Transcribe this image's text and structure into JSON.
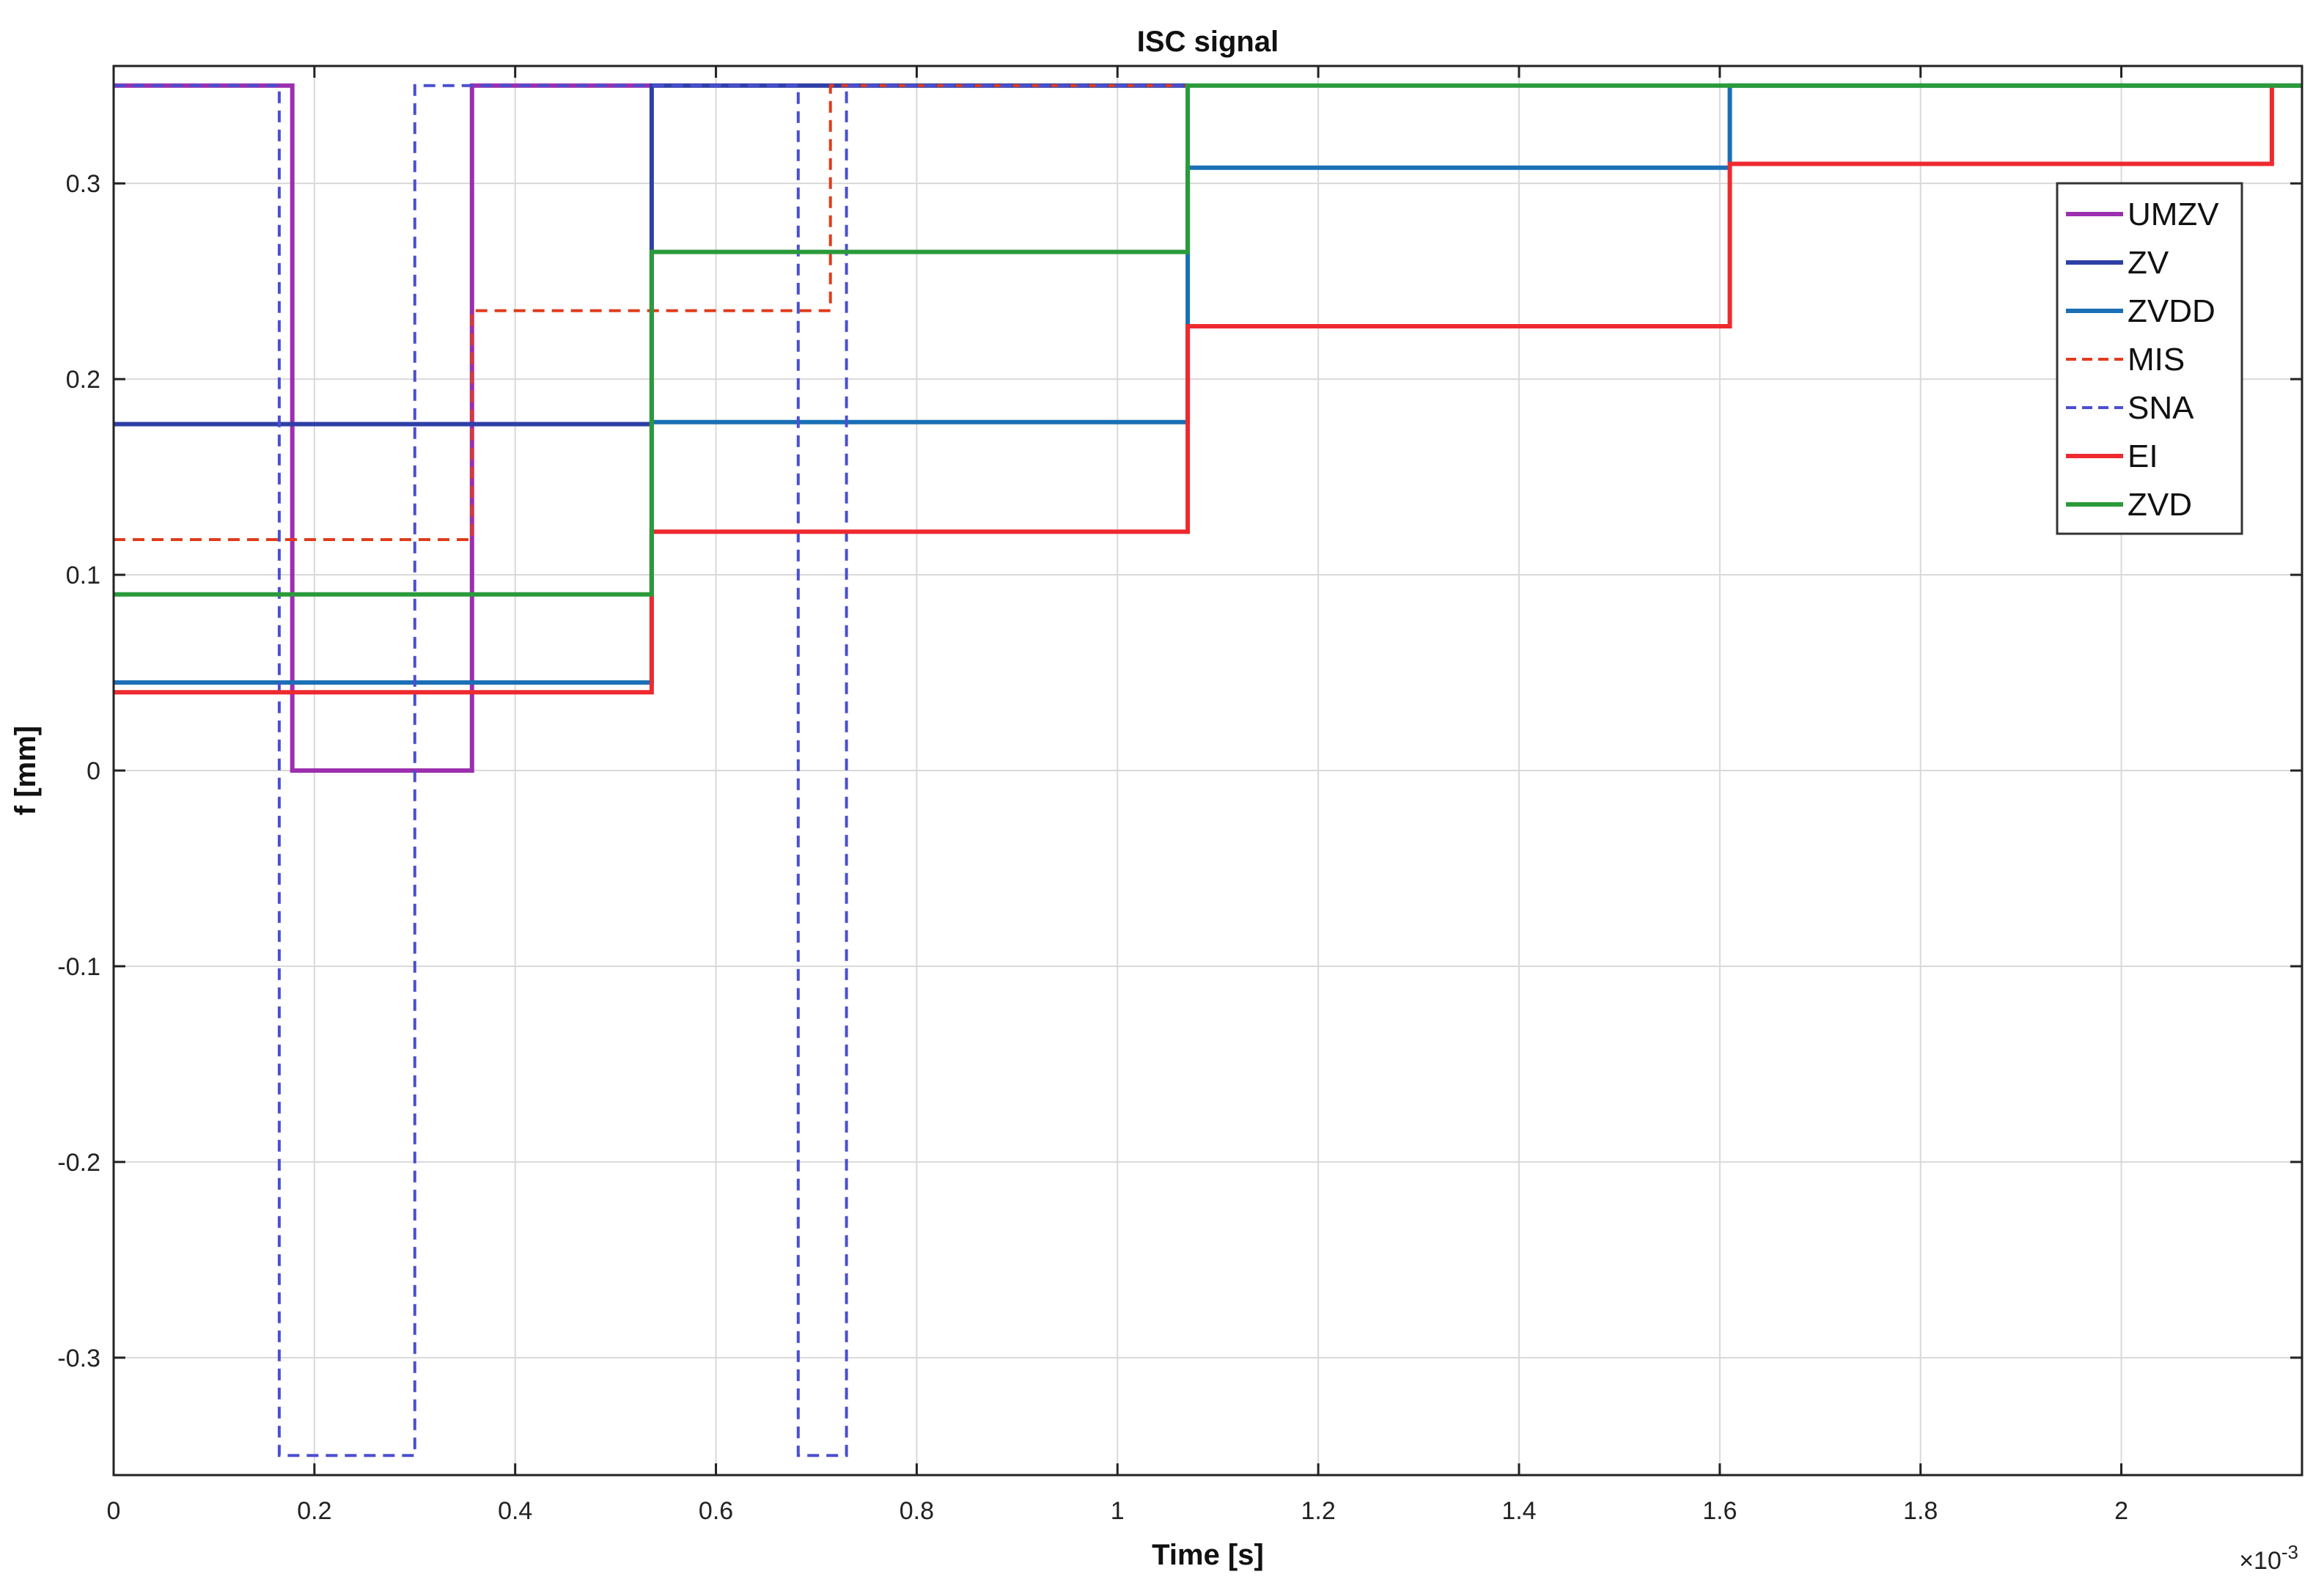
{
  "chart_data": {
    "type": "line",
    "title": "ISC signal",
    "xlabel": "Time [s]",
    "ylabel": "f [mm]",
    "x_exponent_label": "×10",
    "x_exponent_power": "-3",
    "xlim": [
      0,
      0.00218
    ],
    "ylim": [
      -0.36,
      0.36
    ],
    "xticks": [
      0,
      0.0002,
      0.0004,
      0.0006,
      0.0008,
      0.001,
      0.0012,
      0.0014,
      0.0016,
      0.0018,
      0.002
    ],
    "xtick_labels": [
      "0",
      "0.2",
      "0.4",
      "0.6",
      "0.8",
      "1",
      "1.2",
      "1.4",
      "1.6",
      "1.8",
      "2"
    ],
    "yticks": [
      -0.3,
      -0.2,
      -0.1,
      0,
      0.1,
      0.2,
      0.3
    ],
    "ytick_labels": [
      "-0.3",
      "-0.2",
      "-0.1",
      "0",
      "0.1",
      "0.2",
      "0.3"
    ],
    "grid": true,
    "legend_position": "top-right",
    "series": [
      {
        "name": "UMZV",
        "color": "#9b2fae",
        "dashed": false,
        "x": [
          0,
          0.000178,
          0.000178,
          0.000357,
          0.000357,
          0.000536
        ],
        "y": [
          0.35,
          0.35,
          0,
          0,
          0.35,
          0.35
        ]
      },
      {
        "name": "ZV",
        "color": "#2e3fa6",
        "dashed": false,
        "x": [
          0,
          0.000536,
          0.000536,
          0.00107
        ],
        "y": [
          0.177,
          0.177,
          0.35,
          0.35
        ]
      },
      {
        "name": "ZVDD",
        "color": "#1a6fb5",
        "dashed": false,
        "x": [
          0,
          0.000536,
          0.000536,
          0.00107,
          0.00107,
          0.00161,
          0.00161,
          0.00218
        ],
        "y": [
          0.045,
          0.045,
          0.178,
          0.178,
          0.308,
          0.308,
          0.35,
          0.35
        ]
      },
      {
        "name": "MIS",
        "color": "#e03c1c",
        "dashed": true,
        "x": [
          0,
          0.000357,
          0.000357,
          0.000714,
          0.000714,
          0.00107
        ],
        "y": [
          0.118,
          0.118,
          0.235,
          0.235,
          0.35,
          0.35
        ]
      },
      {
        "name": "SNA",
        "color": "#4a4fd0",
        "dashed": true,
        "x": [
          0,
          0.000165,
          0.000165,
          0.0003,
          0.0003,
          0.000682,
          0.000682,
          0.00073,
          0.00073,
          0.00107
        ],
        "y": [
          0.35,
          0.35,
          -0.35,
          -0.35,
          0.35,
          0.35,
          -0.35,
          -0.35,
          0.35,
          0.35
        ]
      },
      {
        "name": "EI",
        "color": "#ee2a2f",
        "dashed": false,
        "x": [
          0,
          0.000536,
          0.000536,
          0.00107,
          0.00107,
          0.00161,
          0.00161,
          0.00215,
          0.00215
        ],
        "y": [
          0.04,
          0.04,
          0.122,
          0.122,
          0.227,
          0.227,
          0.31,
          0.31,
          0.35
        ]
      },
      {
        "name": "ZVD",
        "color": "#2a9a3a",
        "dashed": false,
        "x": [
          0,
          0.000536,
          0.000536,
          0.00107,
          0.00107,
          0.00218
        ],
        "y": [
          0.09,
          0.09,
          0.265,
          0.265,
          0.35,
          0.35
        ]
      }
    ]
  }
}
